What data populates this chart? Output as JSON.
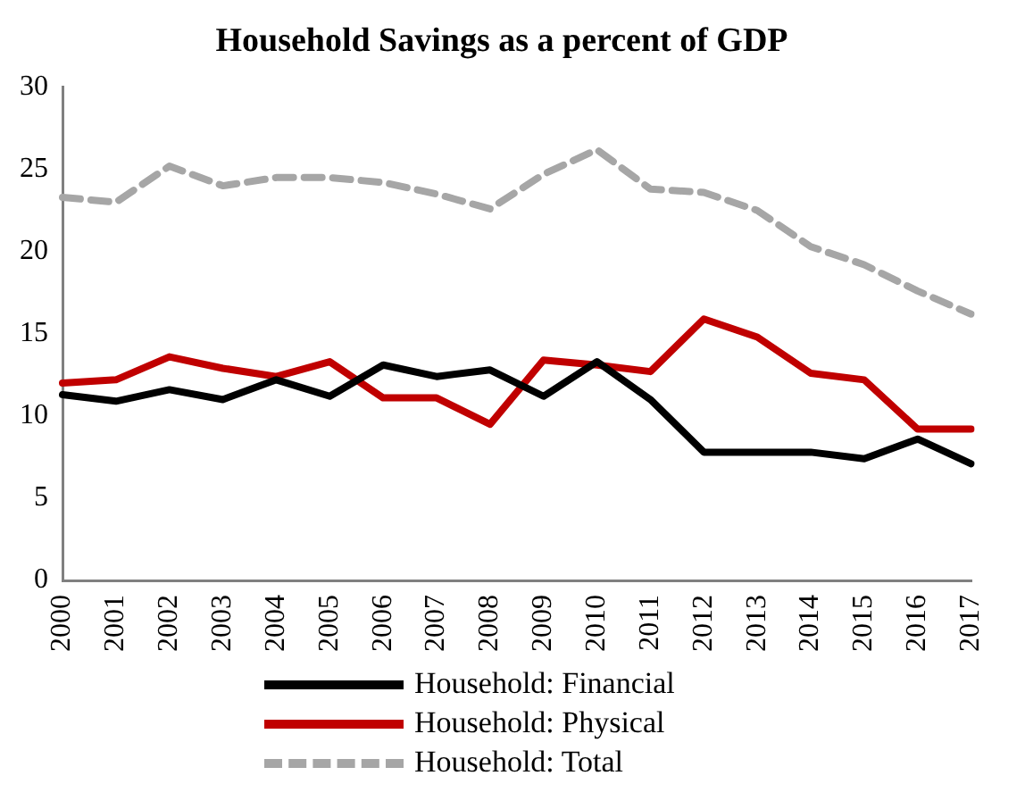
{
  "chart_data": {
    "type": "line",
    "title": "Household Savings as a percent of GDP",
    "categories": [
      "2000",
      "2001",
      "2002",
      "2003",
      "2004",
      "2005",
      "2006",
      "2007",
      "2008",
      "2009",
      "2010",
      "2011",
      "2012",
      "2013",
      "2014",
      "2015",
      "2016",
      "2017"
    ],
    "series": [
      {
        "name": "Household: Financial",
        "color": "#000000",
        "line_style": "solid",
        "values": [
          11.3,
          10.9,
          11.6,
          11.0,
          12.2,
          11.2,
          13.1,
          12.4,
          12.8,
          11.2,
          13.3,
          11.0,
          7.8,
          7.8,
          7.8,
          7.4,
          8.6,
          7.1
        ]
      },
      {
        "name": "Household: Physical",
        "color": "#c00000",
        "line_style": "solid",
        "values": [
          12.0,
          12.2,
          13.6,
          12.9,
          12.4,
          13.3,
          11.1,
          11.1,
          9.5,
          13.4,
          13.1,
          12.7,
          15.9,
          14.8,
          12.6,
          12.2,
          9.2,
          9.2
        ]
      },
      {
        "name": "Household: Total",
        "color": "#a6a6a6",
        "line_style": "dashed",
        "values": [
          23.3,
          23.0,
          25.2,
          24.0,
          24.5,
          24.5,
          24.2,
          23.5,
          22.6,
          24.7,
          26.2,
          23.8,
          23.6,
          22.5,
          20.3,
          19.2,
          17.6,
          16.2
        ]
      }
    ],
    "ylim": [
      0,
      30
    ],
    "yticks": [
      0,
      5,
      10,
      15,
      20,
      25,
      30
    ],
    "grid": false,
    "legend": "bottom",
    "marker": "none"
  }
}
